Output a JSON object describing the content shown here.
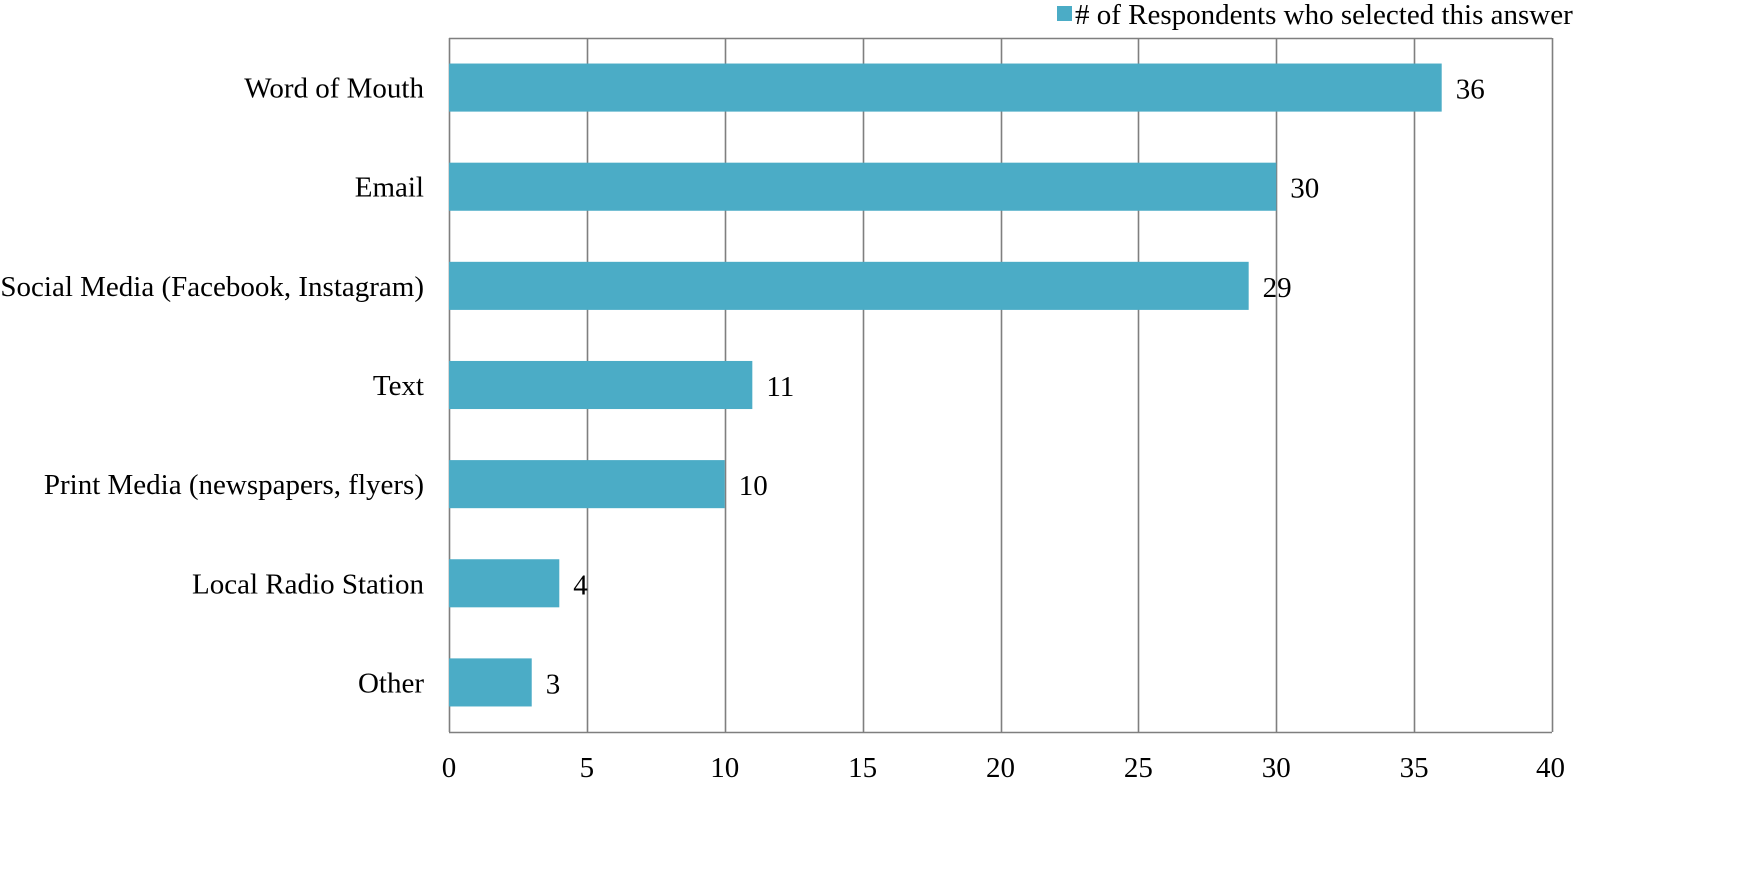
{
  "chart_data": {
    "type": "bar",
    "orientation": "horizontal",
    "categories": [
      "Word of Mouth",
      "Email",
      "Social Media (Facebook, Instagram)",
      "Text",
      "Print Media (newspapers, flyers)",
      "Local Radio Station",
      "Other"
    ],
    "series": [
      {
        "name": "# of Respondents who selected this answer",
        "values": [
          36,
          30,
          29,
          11,
          10,
          4,
          3
        ],
        "color": "#4BACC6"
      }
    ],
    "xlim": [
      0,
      40
    ],
    "xticks": [
      0,
      5,
      10,
      15,
      20,
      25,
      30,
      35,
      40
    ],
    "grid": "vertical",
    "legend_position": "top-right",
    "data_labels": true,
    "title": "",
    "xlabel": "",
    "ylabel": ""
  },
  "colors": {
    "bar": "#4BACC6",
    "grid": "#7f7f7f"
  }
}
